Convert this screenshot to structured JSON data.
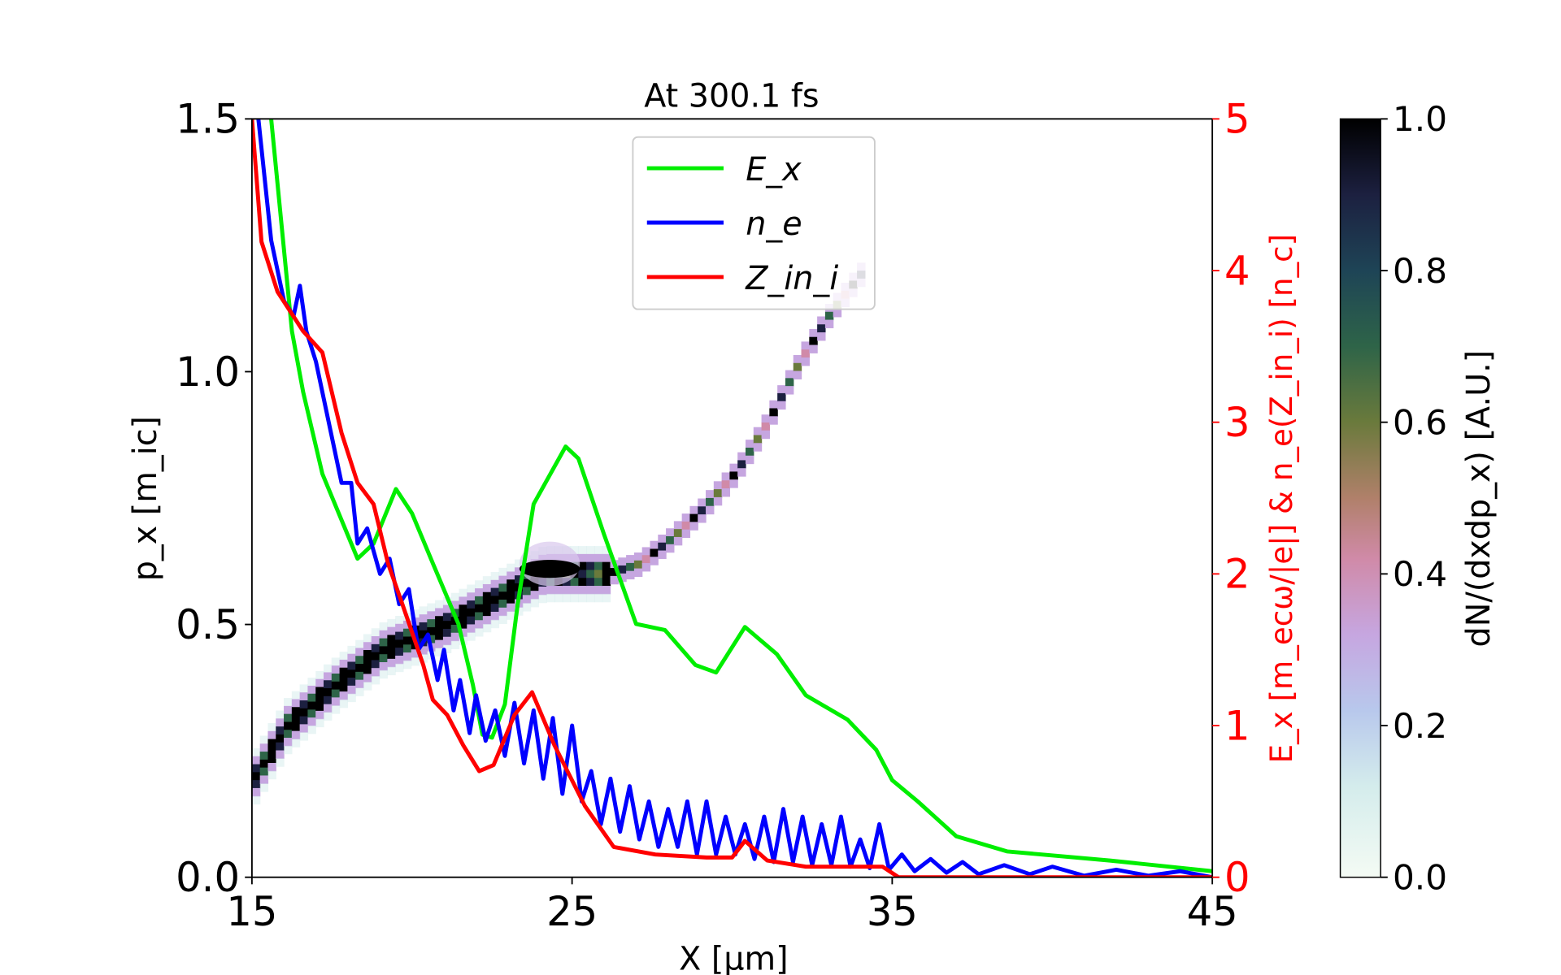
{
  "chart_data": {
    "type": "line",
    "title": "At 300.1 fs",
    "xlabel": "X [μm]",
    "ylabel_left": "p_x [m_ic]",
    "ylabel_right": "E_x [m_ecω/|e|] & n_e(Z_in_i) [n_c]",
    "colorbar_label": "dN/(dxdp_x) [A.U.]",
    "xlim": [
      15,
      45
    ],
    "ylim_left": [
      0,
      1.5
    ],
    "ylim_right": [
      0,
      5
    ],
    "clim": [
      0,
      1
    ],
    "xticks": [
      "15",
      "25",
      "35",
      "45"
    ],
    "xtick_values": [
      15,
      25,
      35,
      45
    ],
    "yticks_left": [
      "0.0",
      "0.5",
      "1.0",
      "1.5"
    ],
    "ytick_left_values": [
      0,
      0.5,
      1.0,
      1.5
    ],
    "yticks_right": [
      "0",
      "1",
      "2",
      "3",
      "4",
      "5"
    ],
    "ytick_right_values": [
      0,
      1,
      2,
      3,
      4,
      5
    ],
    "cbar_ticks": [
      "0.0",
      "0.2",
      "0.4",
      "0.6",
      "0.8",
      "1.0"
    ],
    "cbar_tick_values": [
      0,
      0.2,
      0.4,
      0.6,
      0.8,
      1.0
    ],
    "legend_placement": "upper-center",
    "series": [
      {
        "name": "E_x",
        "color": "#00ee00",
        "axis": "right",
        "x": [
          15.6,
          16.25,
          16.6,
          17.2,
          18.3,
          18.8,
          19.5,
          20.0,
          20.65,
          21.45,
          21.9,
          22.2,
          22.5,
          22.9,
          23.3,
          23.8,
          24.8,
          25.2,
          26.0,
          27.0,
          27.9,
          28.85,
          29.5,
          30.4,
          31.4,
          32.3,
          33.6,
          34.5,
          35.0,
          35.8,
          37.0,
          38.6,
          41.8,
          45
        ],
        "y": [
          5.0,
          3.6,
          3.2,
          2.66,
          2.1,
          2.2,
          2.56,
          2.4,
          2.07,
          1.67,
          1.27,
          0.94,
          0.92,
          1.14,
          1.8,
          2.46,
          2.84,
          2.76,
          2.26,
          1.67,
          1.63,
          1.4,
          1.35,
          1.65,
          1.47,
          1.2,
          1.04,
          0.84,
          0.64,
          0.5,
          0.27,
          0.17,
          0.11,
          0.04
        ]
      },
      {
        "name": "n_e",
        "color": "#0000ff",
        "axis": "right",
        "x": [
          15.2,
          15.6,
          16.0,
          16.3,
          16.5,
          16.7,
          17.0,
          17.4,
          17.8,
          18.1,
          18.3,
          18.6,
          19.0,
          19.3,
          19.6,
          19.9,
          20.2,
          20.5,
          20.8,
          21.0,
          21.3,
          21.5,
          21.8,
          22.0,
          22.3,
          22.6,
          22.9,
          23.2,
          23.5,
          23.8,
          24.1,
          24.4,
          24.7,
          25.0,
          25.3,
          25.6,
          25.9,
          26.2,
          26.5,
          26.8,
          27.1,
          27.4,
          27.7,
          28.0,
          28.3,
          28.6,
          28.9,
          29.2,
          29.5,
          29.8,
          30.1,
          30.4,
          30.7,
          31.0,
          31.3,
          31.6,
          31.9,
          32.2,
          32.5,
          32.8,
          33.1,
          33.4,
          33.7,
          34.0,
          34.3,
          34.6,
          34.9,
          35.3,
          35.7,
          36.2,
          36.7,
          37.2,
          37.7,
          38.5,
          39.3,
          40,
          41,
          42,
          43,
          44,
          45
        ],
        "y": [
          5,
          4.2,
          3.8,
          3.7,
          3.9,
          3.6,
          3.4,
          3.0,
          2.6,
          2.6,
          2.2,
          2.3,
          2.0,
          2.1,
          1.8,
          1.9,
          1.5,
          1.6,
          1.3,
          1.5,
          1.1,
          1.3,
          0.95,
          1.2,
          0.9,
          1.1,
          0.8,
          1.15,
          0.75,
          1.1,
          0.65,
          1.05,
          0.55,
          1.0,
          0.5,
          0.7,
          0.35,
          0.65,
          0.3,
          0.6,
          0.25,
          0.5,
          0.2,
          0.45,
          0.2,
          0.5,
          0.15,
          0.5,
          0.15,
          0.4,
          0.15,
          0.35,
          0.12,
          0.4,
          0.1,
          0.45,
          0.1,
          0.4,
          0.08,
          0.35,
          0.08,
          0.4,
          0.07,
          0.25,
          0.06,
          0.35,
          0.05,
          0.15,
          0.04,
          0.12,
          0.03,
          0.1,
          0.02,
          0.08,
          0.02,
          0.07,
          0.01,
          0.05,
          0.01,
          0.04,
          0
        ]
      },
      {
        "name": "Z_in_i",
        "color": "#ff0000",
        "axis": "right",
        "x": [
          15,
          15.3,
          15.8,
          16.6,
          17.2,
          17.8,
          18.3,
          18.8,
          19.25,
          19.7,
          20.35,
          20.65,
          21.1,
          21.6,
          22.1,
          22.55,
          23.2,
          23.75,
          24.45,
          25.4,
          26.3,
          27.6,
          29.2,
          30,
          30.4,
          31.1,
          32.3,
          34.7,
          35.2,
          45
        ],
        "y": [
          5,
          4.19,
          3.86,
          3.6,
          3.46,
          2.93,
          2.6,
          2.46,
          2.07,
          1.8,
          1.4,
          1.17,
          1.07,
          0.87,
          0.7,
          0.74,
          1.07,
          1.22,
          0.87,
          0.47,
          0.2,
          0.15,
          0.13,
          0.13,
          0.24,
          0.11,
          0.07,
          0.07,
          0,
          0
        ]
      }
    ],
    "phase_space_ridge": {
      "axis": "left",
      "x": [
        15,
        16,
        17.5,
        19,
        21,
        22.5,
        24,
        26,
        27,
        28,
        29,
        30,
        31,
        32,
        33,
        34
      ],
      "p": [
        0.2,
        0.3,
        0.38,
        0.45,
        0.5,
        0.55,
        0.6,
        0.6,
        0.62,
        0.67,
        0.73,
        0.8,
        0.9,
        1.02,
        1.12,
        1.2
      ]
    },
    "legend": [
      {
        "label": "E_x",
        "base": "E",
        "sub": "x",
        "color": "#00ee00"
      },
      {
        "label": "n_e",
        "base": "n",
        "sub": "e",
        "color": "#0000ff"
      },
      {
        "label": "Z_in_i",
        "base": "Z",
        "sub": "i",
        "base2": "n",
        "sub2": "i",
        "color": "#ff0000"
      }
    ],
    "right_axis_color": "#ff0000"
  }
}
